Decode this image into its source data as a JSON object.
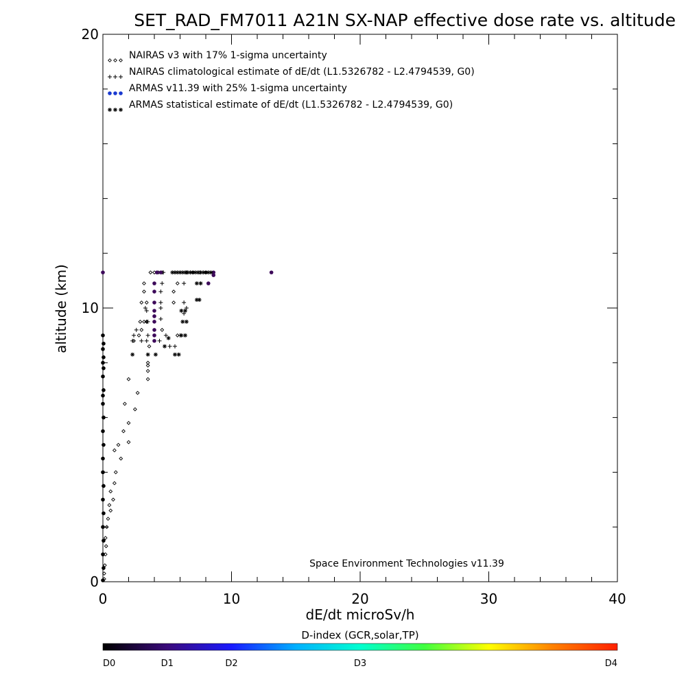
{
  "chart_data": {
    "type": "scatter",
    "title": "SET_RAD_FM7011  A21N SX-NAP effective dose rate vs. altitude",
    "xlabel": "dE/dt microSv/h",
    "ylabel": "altitude (km)",
    "xlim": [
      0,
      40
    ],
    "ylim": [
      0,
      20
    ],
    "x_ticks": [
      "0",
      "10",
      "20",
      "30",
      "40"
    ],
    "y_ticks": [
      "0",
      "10",
      "20"
    ],
    "grid": false,
    "legend_position": "top-left",
    "legend": [
      {
        "label": "NAIRAS v3 with 17% 1-sigma uncertainty",
        "marker": "diamond"
      },
      {
        "label": "NAIRAS climatological estimate of dE/dt (L1.5326782 - L2.4794539, G0)",
        "marker": "plus"
      },
      {
        "label": "ARMAS v11.39 with 25% 1-sigma uncertainty",
        "marker": "dot",
        "color": "#1a3ad0"
      },
      {
        "label": "ARMAS statistical estimate of dE/dt (L1.5326782 - L2.4794539, G0)",
        "marker": "asterisk"
      }
    ],
    "annotation": "Space Environment Technologies v11.39",
    "colorbar": {
      "title": "D-index (GCR,solar,TP)",
      "labels": [
        "D0",
        "D1",
        "D2",
        "D3",
        "D4"
      ],
      "label_positions": [
        0,
        0.125,
        0.25,
        0.5,
        1.0
      ],
      "stops": [
        "#000000",
        "#3a0a7a",
        "#1a1aff",
        "#00b0ff",
        "#00ffd0",
        "#40ff40",
        "#ffff00",
        "#ff8000",
        "#ff2000"
      ]
    },
    "series": [
      {
        "marker": "diamond",
        "points": [
          [
            0.1,
            0.1
          ],
          [
            0.1,
            0.3
          ],
          [
            0.15,
            0.6
          ],
          [
            0.2,
            1.0
          ],
          [
            0.25,
            1.3
          ],
          [
            0.2,
            1.6
          ],
          [
            0.3,
            2.0
          ],
          [
            0.4,
            2.3
          ],
          [
            0.6,
            2.6
          ],
          [
            0.5,
            2.8
          ],
          [
            0.8,
            3.0
          ],
          [
            0.6,
            3.3
          ],
          [
            0.9,
            3.6
          ],
          [
            1.0,
            4.0
          ],
          [
            1.4,
            4.5
          ],
          [
            0.9,
            4.8
          ],
          [
            1.2,
            5.0
          ],
          [
            2.0,
            5.1
          ],
          [
            1.6,
            5.5
          ],
          [
            2.0,
            5.8
          ],
          [
            2.5,
            6.3
          ],
          [
            1.7,
            6.5
          ],
          [
            2.7,
            6.9
          ],
          [
            2.0,
            7.4
          ],
          [
            3.5,
            7.4
          ],
          [
            3.5,
            7.7
          ],
          [
            3.5,
            7.9
          ],
          [
            3.5,
            8.0
          ],
          [
            3.6,
            8.6
          ],
          [
            2.4,
            8.8
          ],
          [
            2.8,
            9.0
          ],
          [
            3.0,
            9.2
          ],
          [
            2.9,
            9.5
          ],
          [
            3.2,
            9.5
          ],
          [
            3.4,
            9.5
          ],
          [
            3.0,
            10.2
          ],
          [
            3.2,
            10.6
          ],
          [
            3.2,
            10.9
          ],
          [
            3.4,
            10.2
          ],
          [
            4.6,
            9.2
          ],
          [
            5.8,
            9.0
          ],
          [
            5.5,
            10.2
          ],
          [
            5.5,
            10.6
          ],
          [
            5.8,
            10.9
          ],
          [
            3.7,
            11.3
          ],
          [
            4.0,
            11.3
          ],
          [
            4.3,
            11.3
          ],
          [
            4.6,
            11.3
          ],
          [
            6.5,
            11.3
          ],
          [
            7.0,
            11.3
          ],
          [
            7.5,
            11.3
          ],
          [
            8.0,
            11.3
          ]
        ]
      },
      {
        "marker": "plus",
        "points": [
          [
            2.3,
            8.8
          ],
          [
            2.4,
            9.0
          ],
          [
            2.6,
            9.2
          ],
          [
            3.0,
            8.8
          ],
          [
            3.4,
            8.8
          ],
          [
            3.5,
            9.0
          ],
          [
            3.4,
            9.5
          ],
          [
            3.5,
            9.5
          ],
          [
            3.4,
            9.9
          ],
          [
            3.3,
            10.0
          ],
          [
            4.4,
            8.8
          ],
          [
            4.9,
            9.0
          ],
          [
            4.5,
            9.6
          ],
          [
            4.5,
            10.0
          ],
          [
            4.5,
            10.2
          ],
          [
            4.5,
            10.6
          ],
          [
            4.6,
            10.9
          ],
          [
            4.7,
            11.3
          ],
          [
            5.2,
            8.6
          ],
          [
            5.6,
            8.6
          ],
          [
            6.0,
            9.0
          ],
          [
            6.3,
            9.8
          ],
          [
            6.5,
            10.0
          ],
          [
            6.3,
            10.2
          ],
          [
            6.3,
            10.9
          ],
          [
            6.5,
            11.3
          ]
        ]
      },
      {
        "marker": "dot",
        "color": "#3d0a5a",
        "points": [
          [
            0.0,
            11.3
          ],
          [
            4.0,
            8.8
          ],
          [
            4.0,
            9.0
          ],
          [
            4.0,
            9.2
          ],
          [
            4.0,
            9.5
          ],
          [
            4.0,
            9.7
          ],
          [
            4.0,
            9.9
          ],
          [
            4.0,
            10.2
          ],
          [
            4.0,
            10.6
          ],
          [
            4.0,
            10.9
          ],
          [
            4.2,
            11.3
          ],
          [
            4.5,
            11.3
          ],
          [
            8.2,
            10.9
          ],
          [
            8.6,
            11.3
          ],
          [
            8.6,
            11.2
          ],
          [
            13.1,
            11.3
          ]
        ]
      },
      {
        "marker": "dot",
        "color": "#000000",
        "points": [
          [
            0.0,
            0.05
          ],
          [
            0.05,
            0.5
          ],
          [
            0.0,
            1.0
          ],
          [
            0.05,
            1.5
          ],
          [
            0.0,
            2.0
          ],
          [
            0.05,
            2.5
          ],
          [
            0.0,
            3.0
          ],
          [
            0.05,
            3.5
          ],
          [
            0.0,
            4.0
          ],
          [
            0.0,
            4.5
          ],
          [
            0.05,
            5.0
          ],
          [
            0.0,
            5.5
          ],
          [
            0.05,
            6.0
          ],
          [
            0.0,
            6.5
          ],
          [
            0.0,
            6.8
          ],
          [
            0.05,
            7.0
          ],
          [
            0.0,
            7.5
          ],
          [
            0.05,
            7.8
          ],
          [
            0.0,
            8.0
          ],
          [
            0.05,
            8.2
          ],
          [
            0.0,
            8.5
          ],
          [
            0.05,
            8.7
          ],
          [
            0.0,
            9.0
          ]
        ]
      },
      {
        "marker": "asterisk",
        "points": [
          [
            2.3,
            8.3
          ],
          [
            3.5,
            8.3
          ],
          [
            4.1,
            8.3
          ],
          [
            5.6,
            8.3
          ],
          [
            5.9,
            8.3
          ],
          [
            4.8,
            8.6
          ],
          [
            5.1,
            8.9
          ],
          [
            6.1,
            9.0
          ],
          [
            6.4,
            9.0
          ],
          [
            6.2,
            9.5
          ],
          [
            6.5,
            9.5
          ],
          [
            6.1,
            9.9
          ],
          [
            6.4,
            9.9
          ],
          [
            7.3,
            10.3
          ],
          [
            7.5,
            10.3
          ],
          [
            7.3,
            10.9
          ],
          [
            7.6,
            10.9
          ],
          [
            5.4,
            11.3
          ],
          [
            5.6,
            11.3
          ],
          [
            5.8,
            11.3
          ],
          [
            6.0,
            11.3
          ],
          [
            6.2,
            11.3
          ],
          [
            6.4,
            11.3
          ],
          [
            6.6,
            11.3
          ],
          [
            6.8,
            11.3
          ],
          [
            7.0,
            11.3
          ],
          [
            7.2,
            11.3
          ],
          [
            7.4,
            11.3
          ],
          [
            7.6,
            11.3
          ],
          [
            7.8,
            11.3
          ],
          [
            8.0,
            11.3
          ],
          [
            8.2,
            11.3
          ],
          [
            8.4,
            11.3
          ]
        ]
      }
    ]
  }
}
